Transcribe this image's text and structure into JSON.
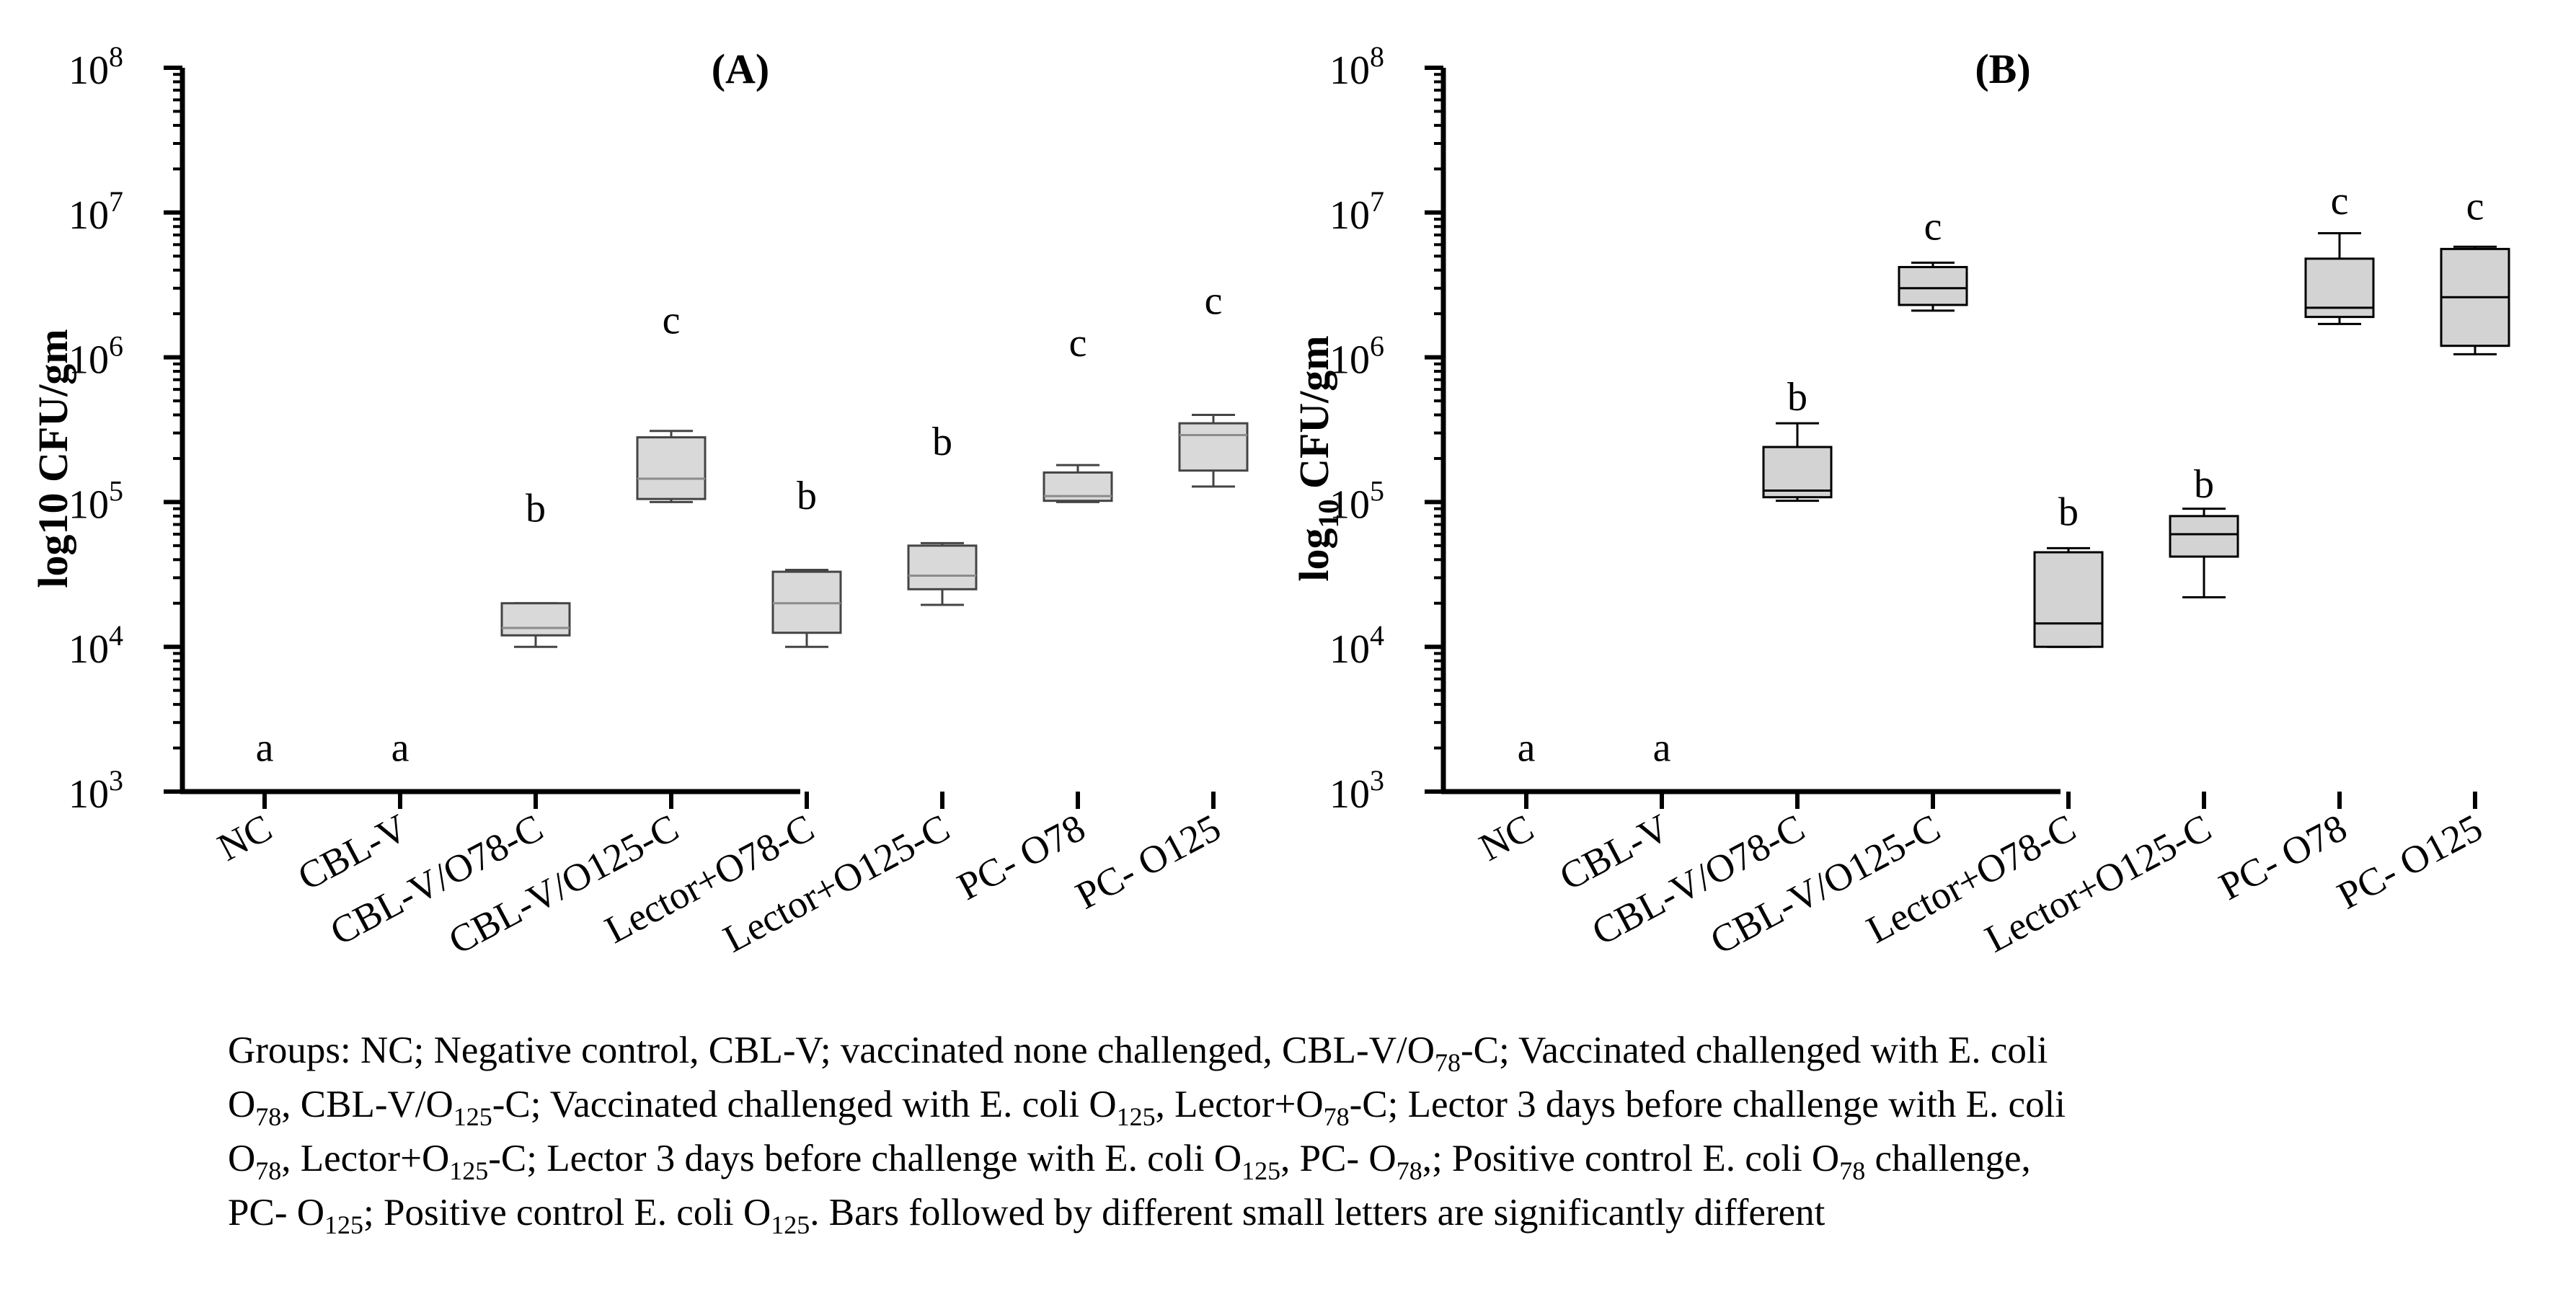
{
  "chart_data": [
    {
      "type": "box",
      "panel": "(A)",
      "ylabel": "log10 CFU/gm",
      "yscale": "log",
      "ylim": [
        1000,
        100000000
      ],
      "yticks": [
        "10^3",
        "10^4",
        "10^5",
        "10^6",
        "10^7",
        "10^8"
      ],
      "categories": [
        "NC",
        "CBL-V",
        "CBL-V/O78-C",
        "CBL-V/O125-C",
        "Lector+O78-C",
        "Lector+O125-C",
        "PC- O78",
        "PC- O125"
      ],
      "boxes": [
        null,
        null,
        {
          "min": 10000,
          "q1": 12000,
          "median": 13500,
          "q3": 20000,
          "max": 20000
        },
        {
          "min": 100000,
          "q1": 105000,
          "median": 145000,
          "q3": 280000,
          "max": 310000
        },
        {
          "min": 10000,
          "q1": 12500,
          "median": 20000,
          "q3": 33000,
          "max": 34000
        },
        {
          "min": 19500,
          "q1": 25000,
          "median": 31000,
          "q3": 50000,
          "max": 52000
        },
        {
          "min": 100000,
          "q1": 102000,
          "median": 110000,
          "q3": 160000,
          "max": 180000
        },
        {
          "min": 128000,
          "q1": 165000,
          "median": 290000,
          "q3": 350000,
          "max": 400000
        }
      ],
      "letters": [
        "a",
        "a",
        "b",
        "c",
        "b",
        "b",
        "c",
        "c"
      ],
      "letter_values": [
        2000,
        2000,
        90000,
        1800000,
        110000,
        260000,
        1250000,
        2450000
      ]
    },
    {
      "type": "box",
      "panel": "(B)",
      "ylabel_main": "log",
      "ylabel_sub": "10",
      "ylabel_rest": " CFU/gm",
      "yscale": "log",
      "ylim": [
        1000,
        100000000
      ],
      "yticks": [
        "10^3",
        "10^4",
        "10^5",
        "10^6",
        "10^7",
        "10^8"
      ],
      "categories": [
        "NC",
        "CBL-V",
        "CBL-V/O78-C",
        "CBL-V/O125-C",
        "Lector+O78-C",
        "Lector+O125-C",
        "PC- O78",
        "PC- O125"
      ],
      "boxes": [
        null,
        null,
        {
          "min": 102000,
          "q1": 108000,
          "median": 120000,
          "q3": 240000,
          "max": 350000
        },
        {
          "min": 2100000,
          "q1": 2300000,
          "median": 3000000,
          "q3": 4200000,
          "max": 4500000
        },
        {
          "min": 10000,
          "q1": 10000,
          "median": 14500,
          "q3": 45000,
          "max": 48000
        },
        {
          "min": 22000,
          "q1": 42000,
          "median": 60000,
          "q3": 80000,
          "max": 90000
        },
        {
          "min": 1700000,
          "q1": 1900000,
          "median": 2200000,
          "q3": 4800000,
          "max": 7200000
        },
        {
          "min": 1050000,
          "q1": 1200000,
          "median": 2600000,
          "q3": 5600000,
          "max": 5800000
        }
      ],
      "letters": [
        "a",
        "a",
        "b",
        "c",
        "b",
        "b",
        "c",
        "c"
      ],
      "letter_values": [
        2000,
        2000,
        530000,
        8000000,
        85000,
        132000,
        12000000,
        11000000
      ]
    }
  ],
  "caption": {
    "line1": [
      {
        "t": "Groups: NC; Negative control, CBL-V; vaccinated none challenged, CBL-V/O"
      },
      {
        "s": "78"
      },
      {
        "t": "-C; Vaccinated challenged with E. coli"
      }
    ],
    "line2": [
      {
        "t": "O"
      },
      {
        "s": "78"
      },
      {
        "t": ", CBL-V/O"
      },
      {
        "s": "125"
      },
      {
        "t": "-C; Vaccinated challenged with E. coli O"
      },
      {
        "s": "125"
      },
      {
        "t": ", Lector+O"
      },
      {
        "s": "78"
      },
      {
        "t": "-C; Lector 3 days before challenge with E. coli"
      }
    ],
    "line3": [
      {
        "t": "O"
      },
      {
        "s": "78"
      },
      {
        "t": ", Lector+O"
      },
      {
        "s": "125"
      },
      {
        "t": "-C; Lector 3 days before challenge with E. coli O"
      },
      {
        "s": "125"
      },
      {
        "t": ", PC- O"
      },
      {
        "s": "78"
      },
      {
        "t": ",; Positive control E. coli O"
      },
      {
        "s": "78"
      },
      {
        "t": " challenge,"
      }
    ],
    "line4": [
      {
        "t": "PC- O"
      },
      {
        "s": "125"
      },
      {
        "t": "; Positive control E. coli O"
      },
      {
        "s": "125"
      },
      {
        "t": ". Bars followed by different small letters are significantly different"
      }
    ]
  },
  "colors": {
    "boxA_fill": "#d9d9d9",
    "boxA_stroke": "#444444",
    "boxA_median": "#8c8c8c",
    "boxB_fill": "#d3d3d3",
    "boxB_stroke": "#000000",
    "boxB_median": "#000000",
    "axis": "#000000"
  }
}
